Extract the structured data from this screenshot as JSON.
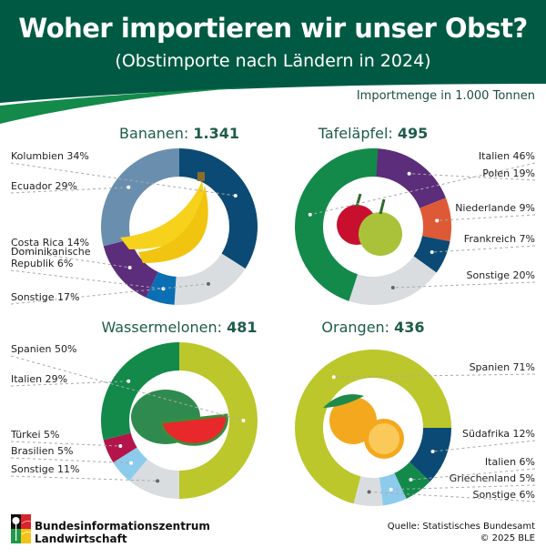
{
  "header": {
    "title": "Woher importieren wir unser Obst?",
    "subtitle": "(Obstimporte nach Ländern in 2024)",
    "unit": "Importmenge in 1.000 Tonnen"
  },
  "colors": {
    "header_dark": "#005a43",
    "header_accent": "#138a4a",
    "title_text": "#1e5c4a"
  },
  "chart_data": [
    {
      "type": "pie",
      "id": "bananen",
      "title_label": "Bananen:",
      "title_value": "1.341",
      "total": 1341,
      "icon": "banana-icon",
      "start_angle_deg": 0,
      "slices": [
        {
          "name": "Kolumbien",
          "value": 34,
          "label": "Kolumbien 34%",
          "color": "#0b4a74"
        },
        {
          "name": "Sonstige",
          "value": 17,
          "label": "Sonstige 17%",
          "color": "#d9dde0"
        },
        {
          "name": "Dominikanische Republik",
          "value": 6,
          "label": "Dominikanische Republik 6%",
          "color": "#0a6fb4"
        },
        {
          "name": "Costa Rica",
          "value": 14,
          "label": "Costa Rica 14%",
          "color": "#5c2d7a"
        },
        {
          "name": "Ecuador",
          "value": 29,
          "label": "Ecuador 29%",
          "color": "#6a8fae"
        }
      ]
    },
    {
      "type": "pie",
      "id": "tafelaepfel",
      "title_label": "Tafeläpfel:",
      "title_value": "495",
      "total": 495,
      "icon": "apple-icon",
      "start_angle_deg": 0,
      "slices": [
        {
          "name": "Polen",
          "value": 19,
          "label": "Polen 19%",
          "color": "#5c2d7a"
        },
        {
          "name": "Niederlande",
          "value": 9,
          "label": "Niederlande 9%",
          "color": "#de5a36"
        },
        {
          "name": "Frankreich",
          "value": 7,
          "label": "Frankreich 7%",
          "color": "#0b4a74"
        },
        {
          "name": "Sonstige",
          "value": 20,
          "label": "Sonstige 20%",
          "color": "#d9dde0"
        },
        {
          "name": "Italien",
          "value": 46,
          "label": "Italien 46%",
          "color": "#138a4a"
        }
      ]
    },
    {
      "type": "pie",
      "id": "wassermelonen",
      "title_label": "Wassermelonen:",
      "title_value": "481",
      "total": 481,
      "icon": "watermelon-icon",
      "start_angle_deg": 0,
      "slices": [
        {
          "name": "Spanien",
          "value": 50,
          "label": "Spanien 50%",
          "color": "#bcc72b"
        },
        {
          "name": "Sonstige",
          "value": 11,
          "label": "Sonstige 11%",
          "color": "#d9dde0"
        },
        {
          "name": "Brasilien",
          "value": 5,
          "label": "Brasilien 5%",
          "color": "#8ccbec"
        },
        {
          "name": "Türkei",
          "value": 5,
          "label": "Türkei 5%",
          "color": "#b3144a"
        },
        {
          "name": "Italien",
          "value": 29,
          "label": "Italien 29%",
          "color": "#138a4a"
        }
      ]
    },
    {
      "type": "pie",
      "id": "orangen",
      "title_label": "Orangen:",
      "title_value": "436",
      "total": 436,
      "icon": "orange-icon",
      "start_angle_deg": 90,
      "slices": [
        {
          "name": "Südafrika",
          "value": 12,
          "label": "Südafrika 12%",
          "color": "#0b4a74"
        },
        {
          "name": "Italien",
          "value": 6,
          "label": "Italien 6%",
          "color": "#138a4a"
        },
        {
          "name": "Griechenland",
          "value": 5,
          "label": "Griechenland 5%",
          "color": "#8ccbec"
        },
        {
          "name": "Sonstige",
          "value": 6,
          "label": "Sonstige 6%",
          "color": "#d9dde0"
        },
        {
          "name": "Spanien",
          "value": 71,
          "label": "Spanien 71%",
          "color": "#bcc72b"
        }
      ]
    }
  ],
  "footer": {
    "org_line1": "Bundesinformationszentrum",
    "org_line2": "Landwirtschaft",
    "source": "Quelle: Statistisches Bundesamt",
    "copyright": "© 2025 BLE"
  }
}
